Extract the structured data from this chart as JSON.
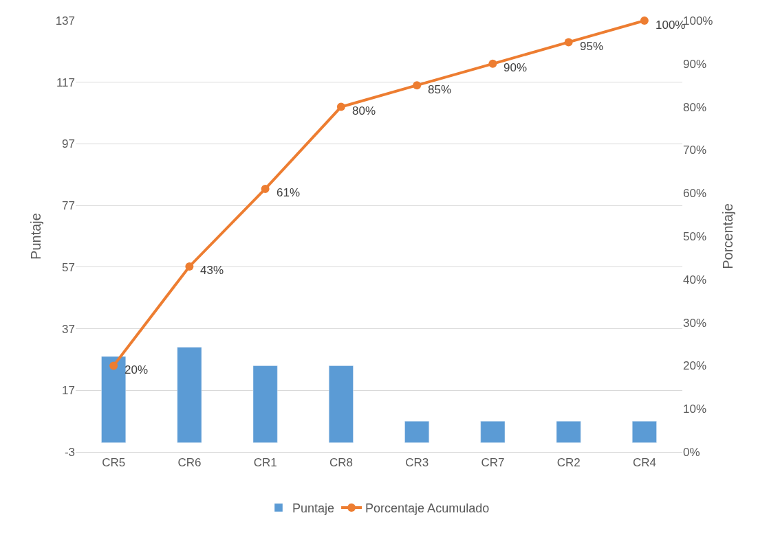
{
  "chart_data": {
    "type": "bar",
    "categories": [
      "CR5",
      "CR6",
      "CR1",
      "CR8",
      "CR3",
      "CR7",
      "CR2",
      "CR4"
    ],
    "ylabel": "Puntaje",
    "y2label": "Porcentaje",
    "series": [
      {
        "name": "Puntaje",
        "color": "#5b9bd5",
        "values": [
          28,
          31,
          25,
          25,
          7,
          7,
          7,
          7
        ]
      },
      {
        "name": "Porcentaje Acumulado",
        "type": "line",
        "axis": "y2",
        "color": "#ed7d31",
        "marker": "circle",
        "data_labels": true,
        "values": [
          20,
          43,
          61,
          80,
          85,
          90,
          95,
          100
        ],
        "value_labels": [
          "20%",
          "43%",
          "61%",
          "80%",
          "85%",
          "90%",
          "95%",
          "100%"
        ]
      }
    ],
    "ylim": [
      -3,
      137
    ],
    "yticks": [
      -3,
      17,
      37,
      57,
      77,
      97,
      117,
      137
    ],
    "y2lim": [
      0,
      100
    ],
    "y2ticks": [
      {
        "value": 0,
        "label": "0%"
      },
      {
        "value": 10,
        "label": "10%"
      },
      {
        "value": 20,
        "label": "20%"
      },
      {
        "value": 30,
        "label": "30%"
      },
      {
        "value": 40,
        "label": "40%"
      },
      {
        "value": 50,
        "label": "50%"
      },
      {
        "value": 60,
        "label": "60%"
      },
      {
        "value": 70,
        "label": "70%"
      },
      {
        "value": 80,
        "label": "80%"
      },
      {
        "value": 90,
        "label": "90%"
      },
      {
        "value": 100,
        "label": "100%"
      }
    ],
    "grid": "y",
    "legend": "bottom"
  }
}
